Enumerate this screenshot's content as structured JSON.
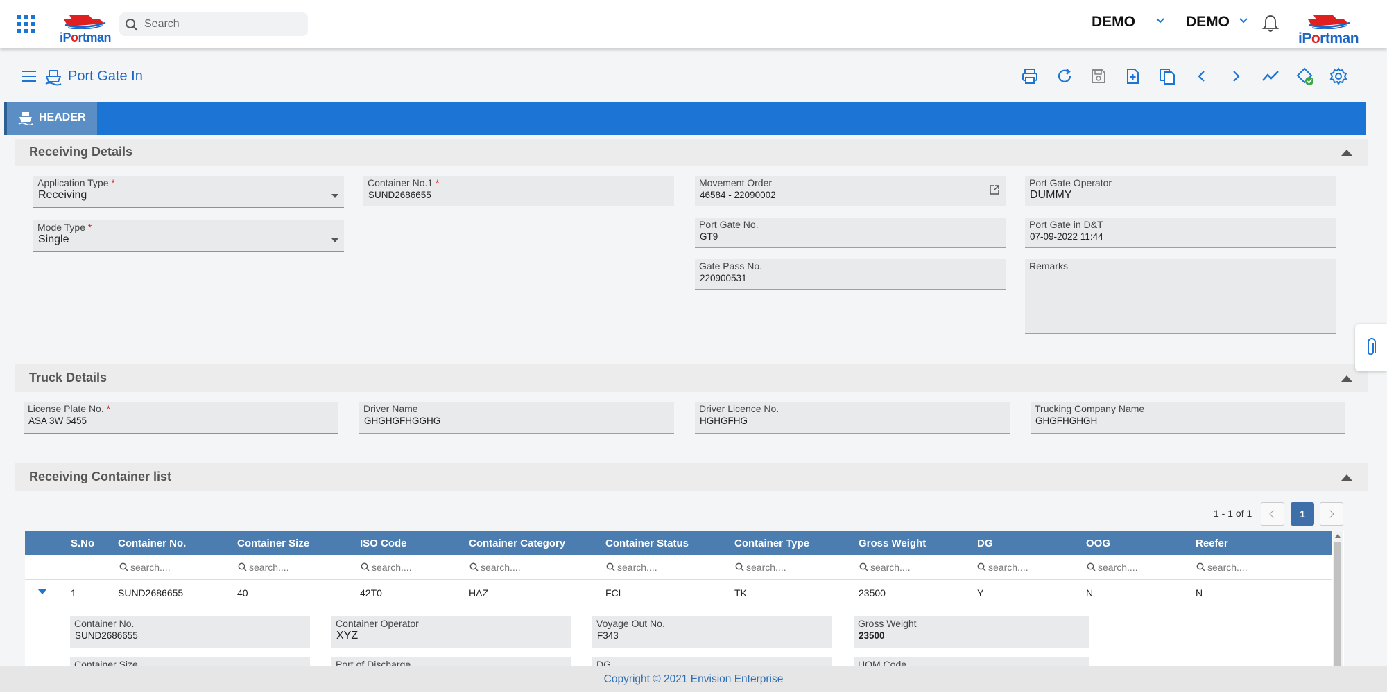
{
  "app": {
    "logo_text_pre": "iP",
    "logo_text_o": "o",
    "logo_text_post": "rtman",
    "search_placeholder": "Search",
    "user_company": "DEMO",
    "user_name": "DEMO"
  },
  "page": {
    "title": "Port Gate In",
    "tab_header": "HEADER"
  },
  "receiving": {
    "title": "Receiving Details",
    "application_type": {
      "label": "Application Type",
      "value": "Receiving"
    },
    "mode_type": {
      "label": "Mode Type",
      "value": "Single"
    },
    "container_no1": {
      "label": "Container No.1",
      "value": "SUND2686655"
    },
    "movement_order": {
      "label": "Movement Order",
      "value": "46584 - 22090002"
    },
    "port_gate_no": {
      "label": "Port Gate No.",
      "value": "GT9"
    },
    "gate_pass_no": {
      "label": "Gate Pass No.",
      "value": "220900531"
    },
    "port_gate_operator": {
      "label": "Port Gate Operator",
      "value": "DUMMY"
    },
    "port_gate_in_dt": {
      "label": "Port Gate in D&T",
      "value": "07-09-2022 11:44"
    },
    "remarks": {
      "label": "Remarks",
      "value": ""
    }
  },
  "truck": {
    "title": "Truck Details",
    "license_plate": {
      "label": "License Plate No.",
      "value": "ASA 3W 5455"
    },
    "driver_name": {
      "label": "Driver Name",
      "value": "GHGHGFHGGHG"
    },
    "driver_licence": {
      "label": "Driver Licence No.",
      "value": "HGHGFHG"
    },
    "trucking_company": {
      "label": "Trucking Company Name",
      "value": "GHGFHGHGH"
    }
  },
  "container_list": {
    "title": "Receiving Container list",
    "pager_text": "1 - 1 of 1",
    "current_page": "1",
    "filter_placeholder": "search....",
    "columns": [
      "S.No",
      "Container No.",
      "Container Size",
      "ISO Code",
      "Container Category",
      "Container Status",
      "Container Type",
      "Gross Weight",
      "DG",
      "OOG",
      "Reefer"
    ],
    "rows": [
      [
        "1",
        "SUND2686655",
        "40",
        "42T0",
        "HAZ",
        "FCL",
        "TK",
        "23500",
        "Y",
        "N",
        "N"
      ]
    ],
    "detail": {
      "container_no": {
        "label": "Container No.",
        "value": "SUND2686655"
      },
      "container_operator": {
        "label": "Container Operator",
        "value": "XYZ"
      },
      "voyage_out_no": {
        "label": "Voyage Out No.",
        "value": "F343"
      },
      "gross_weight": {
        "label": "Gross Weight",
        "value": "23500"
      },
      "container_size": {
        "label": "Container Size"
      },
      "port_of_discharge": {
        "label": "Port of Discharge"
      },
      "dg": {
        "label": "DG"
      },
      "uom_code": {
        "label": "UOM Code"
      }
    }
  },
  "footer": {
    "copyright": "Copyright © 2021 Envision Enterprise"
  },
  "colors": {
    "primary": "#1c74d4",
    "table_header": "#4b7db1",
    "required": "#e02020",
    "accent_underline": "#e07a3a"
  }
}
